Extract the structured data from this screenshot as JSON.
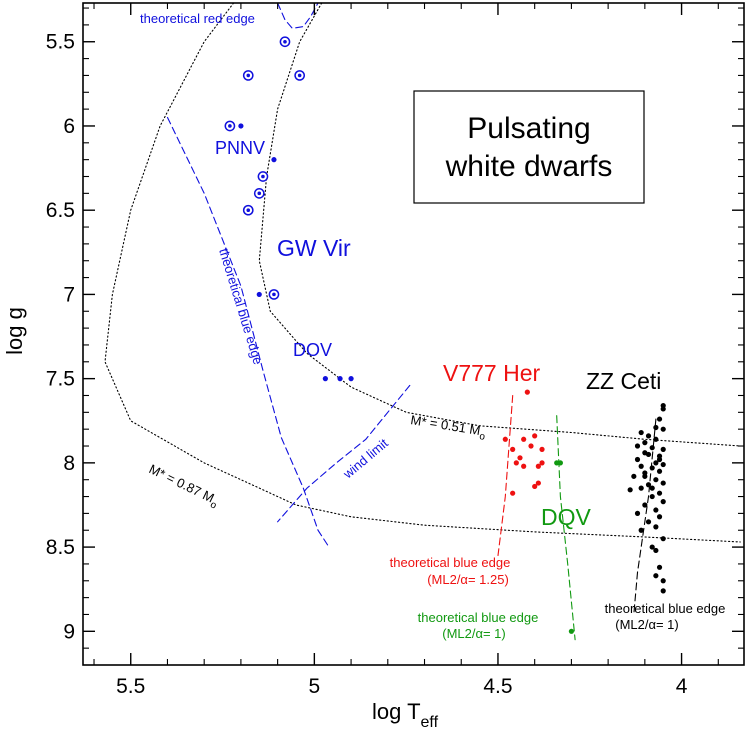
{
  "chart_data": {
    "type": "scatter",
    "title": "Pulsating white dwarfs",
    "title_lines": [
      "Pulsating",
      "white dwarfs"
    ],
    "xlabel_main": "log T",
    "xlabel_sub": "eff",
    "ylabel": "log g",
    "xlim": [
      5.63,
      3.83
    ],
    "ylim": [
      5.27,
      9.2
    ],
    "xticks": [
      5.5,
      5.0,
      4.5,
      4.0
    ],
    "xtick_labels": [
      "5.5",
      "5",
      "4.5",
      "4"
    ],
    "yticks": [
      5.5,
      6.0,
      6.5,
      7.0,
      7.5,
      8.0,
      8.5,
      9.0
    ],
    "ytick_labels": [
      "5.5",
      "6",
      "6.5",
      "7",
      "7.5",
      "8",
      "8.5",
      "9"
    ],
    "grid": false,
    "legend": "none",
    "colors": {
      "blue": "#1010dd",
      "red": "#ee1111",
      "green": "#119911",
      "black": "#000000"
    },
    "series": [
      {
        "name": "PNNV",
        "color": "#1010dd",
        "marker": "circled-dot",
        "points": [
          [
            5.08,
            5.5
          ],
          [
            5.18,
            5.7
          ],
          [
            5.04,
            5.7
          ],
          [
            5.23,
            6.0
          ],
          [
            5.14,
            6.3
          ],
          [
            5.15,
            6.4
          ],
          [
            5.18,
            6.5
          ],
          [
            5.11,
            7.0
          ]
        ]
      },
      {
        "name": "PNNV-dots",
        "color": "#1010dd",
        "marker": "dot",
        "points": [
          [
            5.2,
            6.0
          ],
          [
            5.11,
            6.2
          ],
          [
            5.15,
            7.0
          ]
        ]
      },
      {
        "name": "DOV",
        "color": "#1010dd",
        "marker": "dot",
        "points": [
          [
            4.97,
            7.5
          ],
          [
            4.93,
            7.5
          ],
          [
            4.9,
            7.5
          ]
        ]
      },
      {
        "name": "V777 Her",
        "color": "#ee1111",
        "marker": "dot",
        "points": [
          [
            4.42,
            7.58
          ],
          [
            4.48,
            7.86
          ],
          [
            4.43,
            7.86
          ],
          [
            4.4,
            7.84
          ],
          [
            4.38,
            7.92
          ],
          [
            4.46,
            7.92
          ],
          [
            4.41,
            7.9
          ],
          [
            4.44,
            7.97
          ],
          [
            4.39,
            8.02
          ],
          [
            4.45,
            8.0
          ],
          [
            4.43,
            8.02
          ],
          [
            4.38,
            8.0
          ],
          [
            4.4,
            8.14
          ],
          [
            4.39,
            8.12
          ],
          [
            4.46,
            8.18
          ]
        ]
      },
      {
        "name": "DQV",
        "color": "#119911",
        "marker": "dot",
        "points": [
          [
            4.33,
            8.0
          ],
          [
            4.34,
            8.0
          ],
          [
            4.3,
            9.0
          ]
        ]
      },
      {
        "name": "ZZ Ceti",
        "color": "#000000",
        "marker": "dot",
        "points": [
          [
            4.05,
            7.66
          ],
          [
            4.05,
            7.68
          ],
          [
            4.06,
            7.74
          ],
          [
            4.07,
            7.79
          ],
          [
            4.05,
            7.8
          ],
          [
            4.11,
            7.82
          ],
          [
            4.09,
            7.84
          ],
          [
            4.07,
            7.86
          ],
          [
            4.1,
            7.88
          ],
          [
            4.12,
            7.9
          ],
          [
            4.05,
            7.92
          ],
          [
            4.08,
            7.91
          ],
          [
            4.1,
            7.94
          ],
          [
            4.06,
            7.96
          ],
          [
            4.09,
            7.95
          ],
          [
            4.12,
            7.98
          ],
          [
            4.07,
            8.0
          ],
          [
            4.05,
            8.01
          ],
          [
            4.11,
            8.02
          ],
          [
            4.08,
            8.03
          ],
          [
            4.06,
            8.05
          ],
          [
            4.1,
            8.06
          ],
          [
            4.13,
            8.08
          ],
          [
            4.07,
            8.1
          ],
          [
            4.05,
            8.12
          ],
          [
            4.09,
            8.13
          ],
          [
            4.11,
            8.15
          ],
          [
            4.14,
            8.16
          ],
          [
            4.06,
            8.18
          ],
          [
            4.08,
            8.2
          ],
          [
            4.05,
            8.23
          ],
          [
            4.1,
            8.25
          ],
          [
            4.07,
            8.28
          ],
          [
            4.12,
            8.3
          ],
          [
            4.06,
            8.32
          ],
          [
            4.09,
            8.35
          ],
          [
            4.11,
            8.4
          ],
          [
            4.05,
            8.45
          ],
          [
            4.08,
            8.5
          ],
          [
            4.07,
            8.52
          ],
          [
            4.06,
            8.62
          ],
          [
            4.07,
            8.67
          ],
          [
            4.05,
            8.7
          ],
          [
            4.05,
            8.76
          ],
          [
            4.1,
            8.08
          ],
          [
            4.06,
            7.98
          ],
          [
            4.08,
            8.15
          ],
          [
            4.07,
            8.38
          ]
        ]
      }
    ],
    "curves": [
      {
        "name": "gw-vir-instability-strip",
        "color": "#000000",
        "dash": "dotted",
        "points": [
          [
            5.22,
            5.27
          ],
          [
            5.3,
            5.5
          ],
          [
            5.42,
            6.0
          ],
          [
            5.5,
            6.5
          ],
          [
            5.55,
            7.0
          ],
          [
            5.57,
            7.4
          ],
          [
            5.5,
            7.75
          ],
          [
            5.3,
            8.0
          ],
          [
            5.15,
            8.15
          ],
          [
            5.05,
            8.25
          ],
          [
            4.9,
            8.32
          ],
          [
            4.7,
            8.37
          ],
          [
            4.4,
            8.41
          ],
          [
            4.1,
            8.44
          ],
          [
            3.84,
            8.47
          ]
        ]
      },
      {
        "name": "gw-vir-red-edge",
        "color": "#000000",
        "dash": "dotted",
        "points": [
          [
            4.98,
            5.27
          ],
          [
            5.04,
            5.5
          ],
          [
            5.1,
            5.9
          ],
          [
            5.13,
            6.3
          ],
          [
            5.15,
            6.8
          ],
          [
            5.12,
            7.1
          ],
          [
            5.02,
            7.35
          ],
          [
            4.9,
            7.55
          ],
          [
            4.75,
            7.7
          ],
          [
            4.55,
            7.78
          ],
          [
            4.3,
            7.82
          ],
          [
            4.1,
            7.86
          ],
          [
            3.84,
            7.9
          ]
        ]
      },
      {
        "name": "theoretical-red-edge",
        "color": "#1010dd",
        "dash": "dashed",
        "points": [
          [
            5.1,
            5.27
          ],
          [
            5.08,
            5.37
          ],
          [
            5.06,
            5.42
          ],
          [
            5.03,
            5.41
          ],
          [
            5.01,
            5.35
          ],
          [
            4.99,
            5.27
          ]
        ]
      },
      {
        "name": "theoretical-blue-edge-gwvir",
        "color": "#1010dd",
        "dash": "dashed",
        "points": [
          [
            5.4,
            5.95
          ],
          [
            5.3,
            6.4
          ],
          [
            5.2,
            6.95
          ],
          [
            5.14,
            7.45
          ],
          [
            5.09,
            7.85
          ],
          [
            5.03,
            8.15
          ],
          [
            4.99,
            8.4
          ],
          [
            4.96,
            8.5
          ]
        ]
      },
      {
        "name": "wind-limit",
        "color": "#1010dd",
        "dash": "dashed",
        "points": [
          [
            4.74,
            7.54
          ],
          [
            4.8,
            7.7
          ],
          [
            4.86,
            7.86
          ],
          [
            4.94,
            8.0
          ],
          [
            5.02,
            8.15
          ],
          [
            5.1,
            8.35
          ]
        ]
      },
      {
        "name": "theoretical-blue-edge-v777her",
        "color": "#ee1111",
        "dash": "dashed",
        "points": [
          [
            4.46,
            7.6
          ],
          [
            4.47,
            7.9
          ],
          [
            4.48,
            8.2
          ],
          [
            4.5,
            8.55
          ]
        ]
      },
      {
        "name": "theoretical-blue-edge-dqv",
        "color": "#119911",
        "dash": "dashed",
        "points": [
          [
            4.34,
            7.72
          ],
          [
            4.33,
            8.2
          ],
          [
            4.31,
            8.6
          ],
          [
            4.29,
            9.05
          ]
        ]
      },
      {
        "name": "theoretical-blue-edge-zzceti",
        "color": "#000000",
        "dash": "dashed",
        "points": [
          [
            4.07,
            7.74
          ],
          [
            4.09,
            8.2
          ],
          [
            4.12,
            8.65
          ],
          [
            4.13,
            8.9
          ]
        ]
      }
    ],
    "annotations": [
      {
        "name": "label-theoretical-red-edge",
        "text": "theoretical red edge",
        "color": "#1010dd",
        "size": "small"
      },
      {
        "name": "label-pnnv",
        "text": "PNNV",
        "color": "#1010dd",
        "size": "medium"
      },
      {
        "name": "label-gw-vir",
        "text": "GW Vir",
        "color": "#1010dd",
        "size": "large"
      },
      {
        "name": "label-dov",
        "text": "DOV",
        "color": "#1010dd",
        "size": "medium"
      },
      {
        "name": "label-theoretical-blue-edge-gwvir",
        "text": "theoretical blue edge",
        "color": "#1010dd",
        "size": "small"
      },
      {
        "name": "label-wind-limit",
        "text": "wind limit",
        "color": "#1010dd",
        "size": "small"
      },
      {
        "name": "label-v777-her",
        "text": "V777 Her",
        "color": "#ee1111",
        "size": "large"
      },
      {
        "name": "label-zz-ceti",
        "text": "ZZ Ceti",
        "color": "#000000",
        "size": "large"
      },
      {
        "name": "label-dqv",
        "text": "DQV",
        "color": "#119911",
        "size": "large"
      },
      {
        "name": "label-mass-051",
        "text": "M* = 0.51 M",
        "sub": "o",
        "color": "#000000",
        "size": "small"
      },
      {
        "name": "label-mass-087",
        "text": "M* = 0.87 M",
        "sub": "o",
        "color": "#000000",
        "size": "small"
      },
      {
        "name": "label-tbe-v777-line1",
        "text": "theoretical blue edge",
        "color": "#ee1111",
        "size": "small"
      },
      {
        "name": "label-tbe-v777-line2",
        "text": "(ML2/α= 1.25)",
        "color": "#ee1111",
        "size": "small"
      },
      {
        "name": "label-tbe-dqv-line1",
        "text": "theoretical blue edge",
        "color": "#119911",
        "size": "small"
      },
      {
        "name": "label-tbe-dqv-line2",
        "text": "(ML2/α= 1)",
        "color": "#119911",
        "size": "small"
      },
      {
        "name": "label-tbe-zz-line1",
        "text": "theoretical blue edge",
        "color": "#000000",
        "size": "small"
      },
      {
        "name": "label-tbe-zz-line2",
        "text": "(ML2/α= 1)",
        "color": "#000000",
        "size": "small"
      }
    ]
  }
}
